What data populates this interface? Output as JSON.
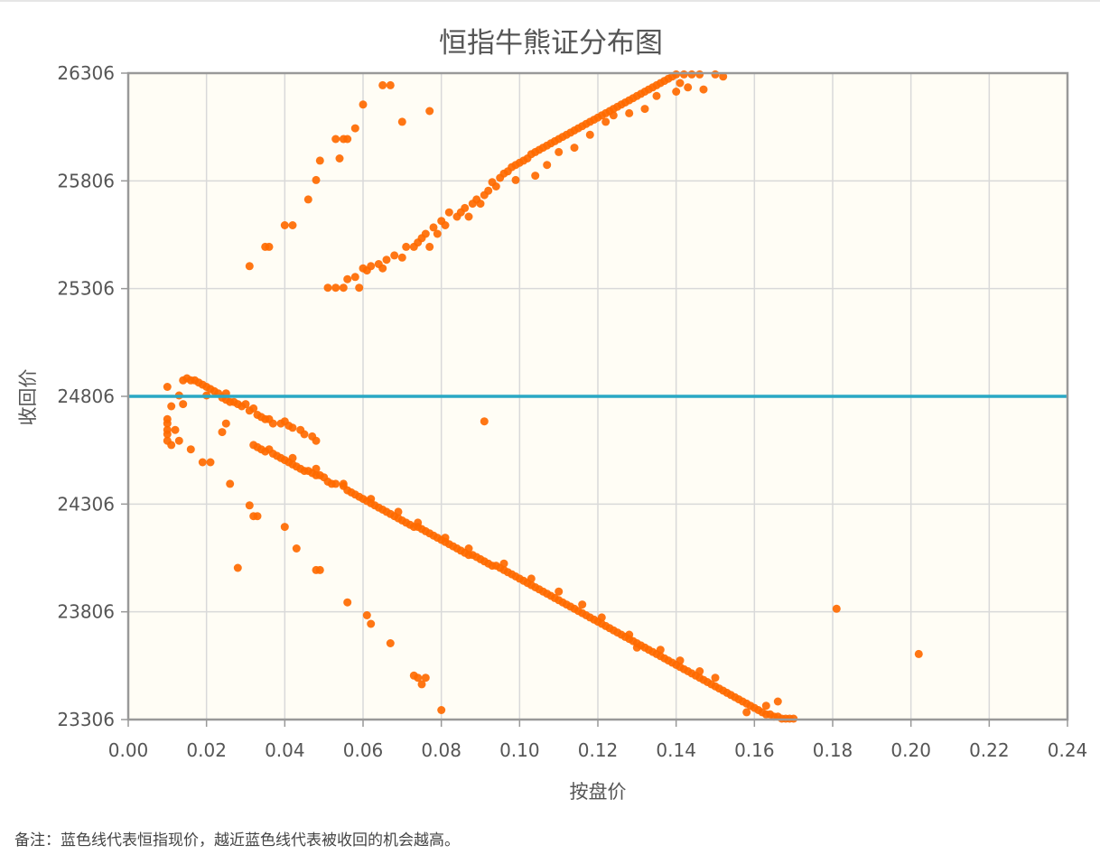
{
  "note": {
    "prefix": "备注：",
    "text": "蓝色线代表恒指现价，越近蓝色线代表被收回的机会越高。"
  },
  "chart_data": {
    "type": "scatter",
    "title": "恒指牛熊证分布图",
    "xlabel": "按盘价",
    "ylabel": "收回价",
    "xlim": [
      0,
      0.24
    ],
    "ylim": [
      23306,
      26306
    ],
    "xticks": [
      "0.00",
      "0.02",
      "0.04",
      "0.06",
      "0.08",
      "0.10",
      "0.12",
      "0.14",
      "0.16",
      "0.18",
      "0.20",
      "0.22",
      "0.24"
    ],
    "yticks": [
      "23306",
      "23806",
      "24306",
      "24806",
      "25306",
      "25806",
      "26306"
    ],
    "reference_line": {
      "y": 24806,
      "color": "#2aa8c4"
    },
    "grid": true,
    "colors": {
      "point": "#ff6a00",
      "plot_bg": "#fffdf5",
      "grid": "#d9d9d9",
      "frame": "#999999"
    },
    "bear_points": [
      [
        0.031,
        25410
      ],
      [
        0.035,
        25500
      ],
      [
        0.036,
        25500
      ],
      [
        0.04,
        25600
      ],
      [
        0.042,
        25600
      ],
      [
        0.046,
        25720
      ],
      [
        0.048,
        25810
      ],
      [
        0.049,
        25900
      ],
      [
        0.053,
        26000
      ],
      [
        0.054,
        25910
      ],
      [
        0.055,
        26000
      ],
      [
        0.056,
        26000
      ],
      [
        0.058,
        26050
      ],
      [
        0.06,
        26160
      ],
      [
        0.065,
        26250
      ],
      [
        0.067,
        26250
      ],
      [
        0.07,
        26080
      ],
      [
        0.077,
        26130
      ],
      [
        0.051,
        25310
      ],
      [
        0.053,
        25310
      ],
      [
        0.055,
        25310
      ],
      [
        0.056,
        25350
      ],
      [
        0.058,
        25360
      ],
      [
        0.059,
        25310
      ],
      [
        0.06,
        25400
      ],
      [
        0.062,
        25410
      ],
      [
        0.064,
        25420
      ],
      [
        0.066,
        25440
      ],
      [
        0.068,
        25460
      ],
      [
        0.07,
        25450
      ],
      [
        0.071,
        25500
      ],
      [
        0.073,
        25500
      ],
      [
        0.074,
        25520
      ],
      [
        0.075,
        25540
      ],
      [
        0.076,
        25560
      ],
      [
        0.077,
        25500
      ],
      [
        0.078,
        25590
      ],
      [
        0.08,
        25620
      ],
      [
        0.081,
        25600
      ],
      [
        0.082,
        25660
      ],
      [
        0.084,
        25640
      ],
      [
        0.085,
        25660
      ],
      [
        0.086,
        25680
      ],
      [
        0.088,
        25700
      ],
      [
        0.089,
        25720
      ],
      [
        0.09,
        25700
      ],
      [
        0.091,
        25740
      ],
      [
        0.092,
        25760
      ],
      [
        0.093,
        25800
      ],
      [
        0.094,
        25780
      ],
      [
        0.095,
        25820
      ],
      [
        0.096,
        25840
      ],
      [
        0.097,
        25850
      ],
      [
        0.098,
        25870
      ],
      [
        0.099,
        25880
      ],
      [
        0.1,
        25890
      ],
      [
        0.101,
        25900
      ],
      [
        0.102,
        25910
      ],
      [
        0.103,
        25930
      ],
      [
        0.104,
        25940
      ],
      [
        0.105,
        25950
      ],
      [
        0.106,
        25960
      ],
      [
        0.107,
        25970
      ],
      [
        0.108,
        25980
      ],
      [
        0.109,
        25990
      ],
      [
        0.11,
        26000
      ],
      [
        0.111,
        26010
      ],
      [
        0.112,
        26020
      ],
      [
        0.113,
        26030
      ],
      [
        0.114,
        26040
      ],
      [
        0.115,
        26050
      ],
      [
        0.116,
        26060
      ],
      [
        0.117,
        26070
      ],
      [
        0.118,
        26080
      ],
      [
        0.119,
        26090
      ],
      [
        0.12,
        26100
      ],
      [
        0.121,
        26110
      ],
      [
        0.122,
        26120
      ],
      [
        0.123,
        26130
      ],
      [
        0.124,
        26140
      ],
      [
        0.125,
        26150
      ],
      [
        0.126,
        26160
      ],
      [
        0.127,
        26170
      ],
      [
        0.128,
        26180
      ],
      [
        0.129,
        26190
      ],
      [
        0.13,
        26200
      ],
      [
        0.131,
        26210
      ],
      [
        0.132,
        26220
      ],
      [
        0.133,
        26230
      ],
      [
        0.134,
        26240
      ],
      [
        0.135,
        26250
      ],
      [
        0.136,
        26260
      ],
      [
        0.137,
        26270
      ],
      [
        0.138,
        26280
      ],
      [
        0.139,
        26290
      ],
      [
        0.14,
        26300
      ],
      [
        0.142,
        26300
      ],
      [
        0.144,
        26300
      ],
      [
        0.146,
        26300
      ],
      [
        0.15,
        26300
      ],
      [
        0.152,
        26290
      ],
      [
        0.143,
        26240
      ],
      [
        0.147,
        26230
      ],
      [
        0.132,
        26140
      ],
      [
        0.124,
        26110
      ],
      [
        0.114,
        25960
      ],
      [
        0.107,
        25880
      ],
      [
        0.104,
        25830
      ],
      [
        0.122,
        26080
      ],
      [
        0.128,
        26120
      ],
      [
        0.135,
        26200
      ],
      [
        0.14,
        26220
      ],
      [
        0.141,
        26260
      ],
      [
        0.118,
        26020
      ],
      [
        0.11,
        25940
      ],
      [
        0.099,
        25810
      ],
      [
        0.087,
        25640
      ],
      [
        0.079,
        25560
      ],
      [
        0.065,
        25400
      ],
      [
        0.061,
        25390
      ]
    ],
    "bull_points": [
      [
        0.01,
        24850
      ],
      [
        0.01,
        24700
      ],
      [
        0.01,
        24680
      ],
      [
        0.01,
        24650
      ],
      [
        0.01,
        24630
      ],
      [
        0.01,
        24600
      ],
      [
        0.011,
        24580
      ],
      [
        0.011,
        24760
      ],
      [
        0.012,
        24650
      ],
      [
        0.013,
        24600
      ],
      [
        0.013,
        24810
      ],
      [
        0.014,
        24770
      ],
      [
        0.014,
        24880
      ],
      [
        0.015,
        24890
      ],
      [
        0.016,
        24880
      ],
      [
        0.017,
        24880
      ],
      [
        0.018,
        24870
      ],
      [
        0.019,
        24860
      ],
      [
        0.02,
        24850
      ],
      [
        0.02,
        24810
      ],
      [
        0.021,
        24840
      ],
      [
        0.022,
        24830
      ],
      [
        0.023,
        24820
      ],
      [
        0.024,
        24800
      ],
      [
        0.025,
        24820
      ],
      [
        0.025,
        24790
      ],
      [
        0.026,
        24780
      ],
      [
        0.027,
        24780
      ],
      [
        0.028,
        24770
      ],
      [
        0.029,
        24760
      ],
      [
        0.03,
        24770
      ],
      [
        0.031,
        24740
      ],
      [
        0.032,
        24750
      ],
      [
        0.033,
        24720
      ],
      [
        0.034,
        24710
      ],
      [
        0.035,
        24700
      ],
      [
        0.036,
        24700
      ],
      [
        0.037,
        24680
      ],
      [
        0.039,
        24680
      ],
      [
        0.04,
        24690
      ],
      [
        0.041,
        24670
      ],
      [
        0.042,
        24660
      ],
      [
        0.044,
        24650
      ],
      [
        0.045,
        24630
      ],
      [
        0.047,
        24620
      ],
      [
        0.048,
        24600
      ],
      [
        0.016,
        24560
      ],
      [
        0.019,
        24500
      ],
      [
        0.021,
        24500
      ],
      [
        0.024,
        24640
      ],
      [
        0.025,
        24680
      ],
      [
        0.026,
        24400
      ],
      [
        0.028,
        24010
      ],
      [
        0.031,
        24300
      ],
      [
        0.032,
        24250
      ],
      [
        0.033,
        24250
      ],
      [
        0.04,
        24200
      ],
      [
        0.043,
        24100
      ],
      [
        0.048,
        24000
      ],
      [
        0.049,
        24000
      ],
      [
        0.056,
        23850
      ],
      [
        0.061,
        23790
      ],
      [
        0.062,
        23750
      ],
      [
        0.067,
        23660
      ],
      [
        0.073,
        23510
      ],
      [
        0.074,
        23500
      ],
      [
        0.075,
        23470
      ],
      [
        0.076,
        23500
      ],
      [
        0.08,
        23350
      ],
      [
        0.091,
        24690
      ],
      [
        0.181,
        23820
      ],
      [
        0.202,
        23610
      ],
      [
        0.032,
        24580
      ],
      [
        0.033,
        24570
      ],
      [
        0.034,
        24560
      ],
      [
        0.035,
        24550
      ],
      [
        0.036,
        24560
      ],
      [
        0.037,
        24540
      ],
      [
        0.038,
        24530
      ],
      [
        0.039,
        24520
      ],
      [
        0.04,
        24510
      ],
      [
        0.041,
        24500
      ],
      [
        0.042,
        24490
      ],
      [
        0.043,
        24480
      ],
      [
        0.044,
        24470
      ],
      [
        0.045,
        24460
      ],
      [
        0.046,
        24460
      ],
      [
        0.047,
        24450
      ],
      [
        0.048,
        24440
      ],
      [
        0.049,
        24440
      ],
      [
        0.05,
        24430
      ],
      [
        0.051,
        24410
      ],
      [
        0.052,
        24400
      ],
      [
        0.053,
        24400
      ],
      [
        0.055,
        24390
      ],
      [
        0.056,
        24370
      ],
      [
        0.057,
        24360
      ],
      [
        0.058,
        24350
      ],
      [
        0.059,
        24340
      ],
      [
        0.06,
        24330
      ],
      [
        0.061,
        24320
      ],
      [
        0.062,
        24310
      ],
      [
        0.063,
        24300
      ],
      [
        0.064,
        24290
      ],
      [
        0.065,
        24280
      ],
      [
        0.066,
        24270
      ],
      [
        0.067,
        24260
      ],
      [
        0.068,
        24250
      ],
      [
        0.069,
        24240
      ],
      [
        0.07,
        24230
      ],
      [
        0.071,
        24220
      ],
      [
        0.072,
        24210
      ],
      [
        0.073,
        24200
      ],
      [
        0.074,
        24200
      ],
      [
        0.075,
        24190
      ],
      [
        0.076,
        24180
      ],
      [
        0.077,
        24170
      ],
      [
        0.078,
        24160
      ],
      [
        0.079,
        24150
      ],
      [
        0.08,
        24140
      ],
      [
        0.081,
        24130
      ],
      [
        0.082,
        24120
      ],
      [
        0.083,
        24110
      ],
      [
        0.084,
        24100
      ],
      [
        0.085,
        24090
      ],
      [
        0.086,
        24080
      ],
      [
        0.087,
        24070
      ],
      [
        0.088,
        24070
      ],
      [
        0.089,
        24060
      ],
      [
        0.09,
        24050
      ],
      [
        0.091,
        24040
      ],
      [
        0.092,
        24030
      ],
      [
        0.093,
        24020
      ],
      [
        0.094,
        24020
      ],
      [
        0.095,
        24010
      ],
      [
        0.096,
        24000
      ],
      [
        0.097,
        23990
      ],
      [
        0.098,
        23980
      ],
      [
        0.099,
        23970
      ],
      [
        0.1,
        23960
      ],
      [
        0.101,
        23950
      ],
      [
        0.102,
        23940
      ],
      [
        0.103,
        23930
      ],
      [
        0.104,
        23920
      ],
      [
        0.105,
        23910
      ],
      [
        0.106,
        23900
      ],
      [
        0.107,
        23890
      ],
      [
        0.108,
        23880
      ],
      [
        0.109,
        23870
      ],
      [
        0.11,
        23860
      ],
      [
        0.111,
        23850
      ],
      [
        0.112,
        23840
      ],
      [
        0.113,
        23830
      ],
      [
        0.114,
        23820
      ],
      [
        0.115,
        23810
      ],
      [
        0.116,
        23800
      ],
      [
        0.117,
        23790
      ],
      [
        0.118,
        23780
      ],
      [
        0.119,
        23770
      ],
      [
        0.12,
        23760
      ],
      [
        0.121,
        23750
      ],
      [
        0.122,
        23740
      ],
      [
        0.123,
        23730
      ],
      [
        0.124,
        23720
      ],
      [
        0.125,
        23710
      ],
      [
        0.126,
        23700
      ],
      [
        0.127,
        23690
      ],
      [
        0.128,
        23680
      ],
      [
        0.129,
        23670
      ],
      [
        0.13,
        23660
      ],
      [
        0.131,
        23650
      ],
      [
        0.132,
        23640
      ],
      [
        0.133,
        23630
      ],
      [
        0.134,
        23620
      ],
      [
        0.135,
        23610
      ],
      [
        0.136,
        23600
      ],
      [
        0.137,
        23590
      ],
      [
        0.138,
        23580
      ],
      [
        0.139,
        23570
      ],
      [
        0.14,
        23560
      ],
      [
        0.141,
        23550
      ],
      [
        0.142,
        23540
      ],
      [
        0.143,
        23530
      ],
      [
        0.144,
        23520
      ],
      [
        0.145,
        23510
      ],
      [
        0.146,
        23500
      ],
      [
        0.147,
        23490
      ],
      [
        0.148,
        23480
      ],
      [
        0.149,
        23470
      ],
      [
        0.15,
        23460
      ],
      [
        0.151,
        23450
      ],
      [
        0.152,
        23440
      ],
      [
        0.153,
        23430
      ],
      [
        0.154,
        23420
      ],
      [
        0.155,
        23410
      ],
      [
        0.156,
        23400
      ],
      [
        0.157,
        23390
      ],
      [
        0.158,
        23380
      ],
      [
        0.159,
        23370
      ],
      [
        0.16,
        23360
      ],
      [
        0.161,
        23350
      ],
      [
        0.162,
        23340
      ],
      [
        0.163,
        23330
      ],
      [
        0.164,
        23330
      ],
      [
        0.165,
        23320
      ],
      [
        0.166,
        23320
      ],
      [
        0.167,
        23310
      ],
      [
        0.168,
        23310
      ],
      [
        0.169,
        23310
      ],
      [
        0.17,
        23310
      ],
      [
        0.158,
        23340
      ],
      [
        0.163,
        23370
      ],
      [
        0.166,
        23390
      ],
      [
        0.15,
        23500
      ],
      [
        0.146,
        23530
      ],
      [
        0.141,
        23580
      ],
      [
        0.136,
        23630
      ],
      [
        0.13,
        23640
      ],
      [
        0.128,
        23700
      ],
      [
        0.121,
        23780
      ],
      [
        0.116,
        23840
      ],
      [
        0.11,
        23900
      ],
      [
        0.103,
        23960
      ],
      [
        0.096,
        24030
      ],
      [
        0.087,
        24100
      ],
      [
        0.081,
        24150
      ],
      [
        0.074,
        24220
      ],
      [
        0.069,
        24270
      ],
      [
        0.062,
        24330
      ],
      [
        0.055,
        24400
      ],
      [
        0.048,
        24470
      ],
      [
        0.042,
        24520
      ]
    ]
  }
}
